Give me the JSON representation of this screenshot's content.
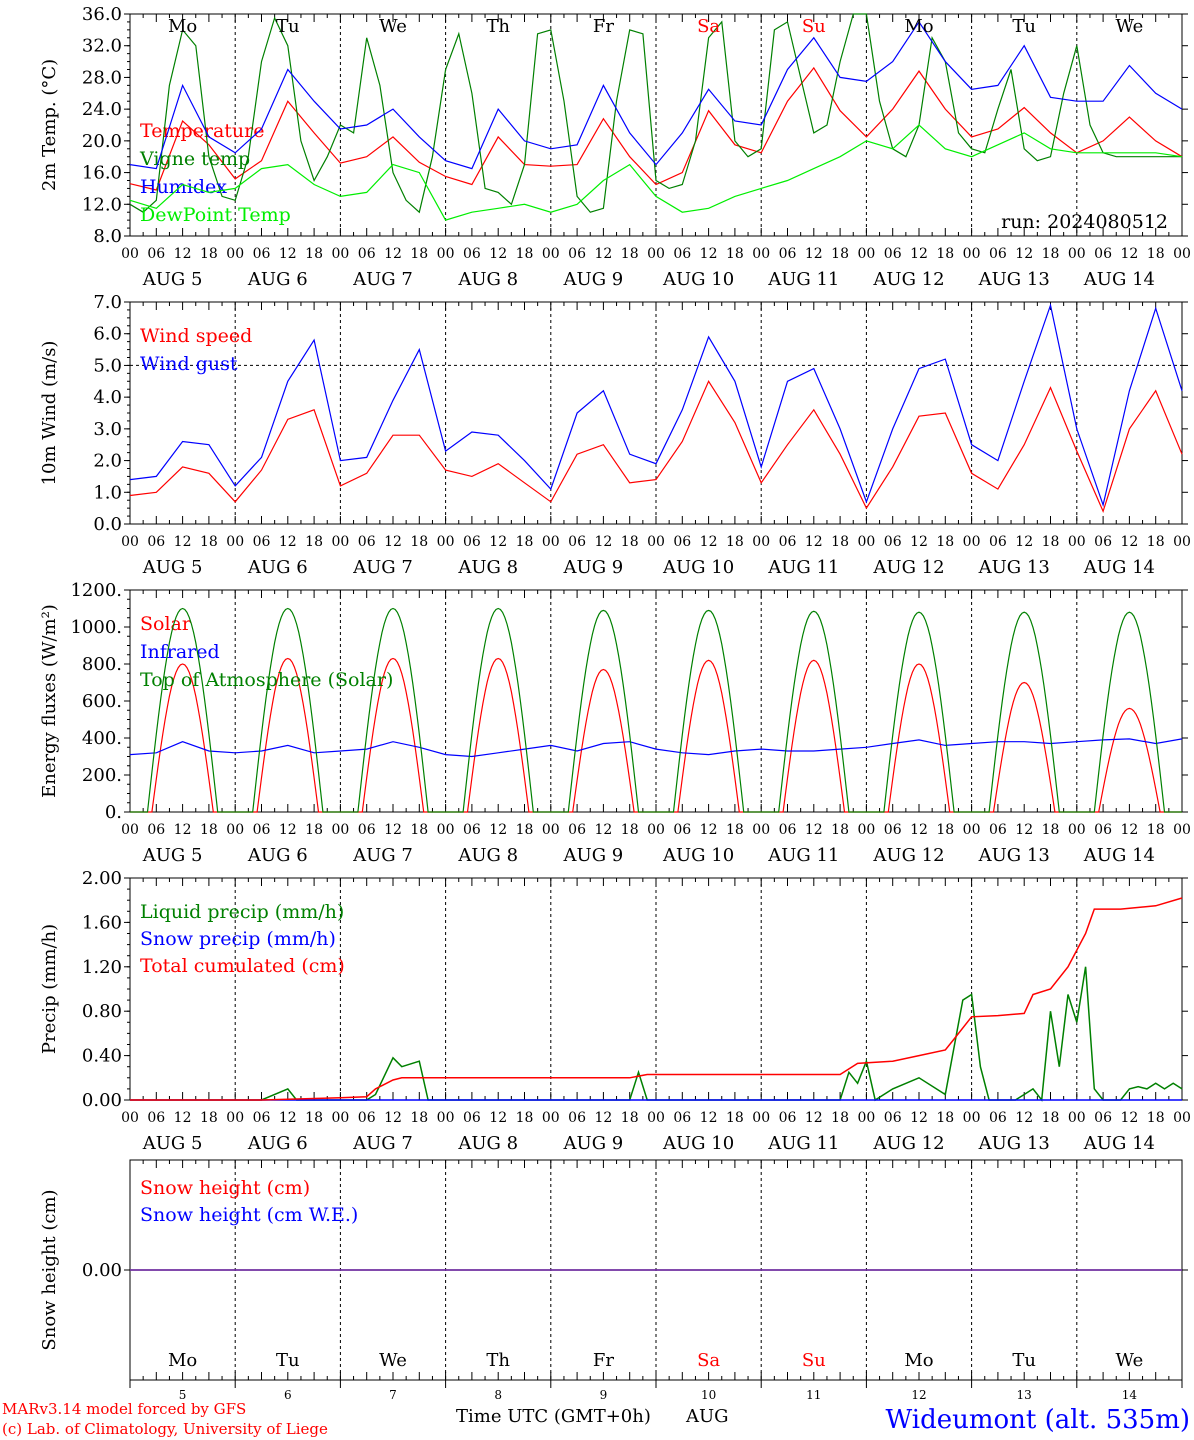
{
  "chart_data": [
    {
      "type": "line",
      "ylabel": "2m Temp. (°C)",
      "ylim": [
        8,
        36
      ],
      "yticks": [
        "8.0",
        "12.0",
        "16.0",
        "20.0",
        "24.0",
        "28.0",
        "32.0",
        "36.0"
      ],
      "run_label": "run: 2024080512",
      "series": [
        {
          "name": "Temperature",
          "color": "#ff0000",
          "x": [
            0,
            6,
            12,
            18,
            24,
            30,
            36,
            42,
            48,
            54,
            60,
            66,
            72,
            78,
            84,
            90,
            96,
            102,
            108,
            114,
            120,
            126,
            132,
            138,
            144,
            150,
            156,
            162,
            168,
            174,
            180,
            186,
            192,
            198,
            204,
            210,
            216,
            222,
            228,
            234,
            240
          ],
          "y": [
            14.6,
            13.8,
            22.5,
            19.5,
            15.2,
            17.5,
            25.0,
            21.0,
            17.2,
            18.0,
            20.5,
            17.3,
            15.5,
            14.5,
            20.5,
            17.0,
            16.8,
            17.0,
            22.8,
            18.0,
            14.5,
            16.0,
            23.8,
            19.5,
            18.5,
            25.0,
            29.2,
            23.8,
            20.5,
            24.0,
            28.8,
            24.0,
            20.5,
            21.5,
            24.2,
            21.0,
            18.5,
            20.0,
            23.0,
            20.0,
            18.0
          ]
        },
        {
          "name": "Vigne temp",
          "color": "#008000",
          "x": [
            0,
            3,
            6,
            9,
            12,
            15,
            18,
            21,
            24,
            27,
            30,
            33,
            36,
            39,
            42,
            45,
            48,
            51,
            54,
            57,
            60,
            63,
            66,
            69,
            72,
            75,
            78,
            81,
            84,
            87,
            90,
            93,
            96,
            99,
            102,
            105,
            108,
            111,
            114,
            117,
            120,
            123,
            126,
            129,
            132,
            135,
            138,
            141,
            144,
            147,
            150,
            153,
            156,
            159,
            162,
            165,
            168,
            171,
            174,
            177,
            180,
            183,
            186,
            189,
            192,
            195,
            198,
            201,
            204,
            207,
            210,
            213,
            216,
            219,
            222,
            225,
            228,
            231,
            234,
            237,
            240
          ],
          "y": [
            12.0,
            11.0,
            12.5,
            27.0,
            34.0,
            32.0,
            18.0,
            13.0,
            12.5,
            18.0,
            30.0,
            35.5,
            32.0,
            20.0,
            15.0,
            18.0,
            22.0,
            21.0,
            33.0,
            27.0,
            16.0,
            12.5,
            11.0,
            18.0,
            29.0,
            33.5,
            26.0,
            14.0,
            13.5,
            12.0,
            17.0,
            33.5,
            34.0,
            25.0,
            13.0,
            11.0,
            11.5,
            25.0,
            34.0,
            33.5,
            15.0,
            14.0,
            14.5,
            20.0,
            33.0,
            35.0,
            20.0,
            18.0,
            19.0,
            34.0,
            35.0,
            28.0,
            21.0,
            22.0,
            30.0,
            36.0,
            36.0,
            25.0,
            19.0,
            18.0,
            22.0,
            33.0,
            30.0,
            21.0,
            19.0,
            18.5,
            24.0,
            29.0,
            19.0,
            17.5,
            18.0,
            26.0,
            32.0,
            22.0,
            18.5,
            18.0,
            18.0,
            18.0,
            18.0,
            18.0,
            18.0
          ]
        },
        {
          "name": "Humidex",
          "color": "#0000ff",
          "x": [
            0,
            6,
            12,
            18,
            24,
            30,
            36,
            42,
            48,
            54,
            60,
            66,
            72,
            78,
            84,
            90,
            96,
            102,
            108,
            114,
            120,
            126,
            132,
            138,
            144,
            150,
            156,
            162,
            168,
            174,
            180,
            186,
            192,
            198,
            204,
            210,
            216,
            222,
            228,
            234,
            240
          ],
          "y": [
            17.0,
            16.5,
            27.0,
            20.5,
            18.5,
            21.5,
            29.0,
            25.0,
            21.5,
            22.0,
            24.0,
            20.5,
            17.5,
            16.5,
            24.0,
            20.0,
            19.0,
            19.5,
            27.0,
            21.0,
            17.0,
            21.0,
            26.5,
            22.5,
            22.0,
            29.0,
            33.0,
            28.0,
            27.5,
            30.0,
            35.0,
            30.0,
            26.5,
            27.0,
            32.0,
            25.5,
            25.0,
            25.0,
            29.5,
            26.0,
            24.0
          ]
        },
        {
          "name": "DewPoint Temp",
          "color": "#00ee00",
          "x": [
            0,
            6,
            12,
            18,
            24,
            30,
            36,
            42,
            48,
            54,
            60,
            66,
            72,
            78,
            84,
            90,
            96,
            102,
            108,
            114,
            120,
            126,
            132,
            138,
            144,
            150,
            156,
            162,
            168,
            174,
            180,
            186,
            192,
            198,
            204,
            210,
            216,
            222,
            228,
            234,
            240
          ],
          "y": [
            12.5,
            11.5,
            14.5,
            13.5,
            14.0,
            16.5,
            17.0,
            14.5,
            13.0,
            13.5,
            17.0,
            16.0,
            10.0,
            11.0,
            11.5,
            12.0,
            11.0,
            12.0,
            15.0,
            17.0,
            13.0,
            11.0,
            11.5,
            13.0,
            14.0,
            15.0,
            16.5,
            18.0,
            20.0,
            19.0,
            22.0,
            19.0,
            18.0,
            19.5,
            21.0,
            19.0,
            18.5,
            18.5,
            18.5,
            18.5,
            18.0
          ]
        }
      ]
    },
    {
      "type": "line",
      "ylabel": "10m Wind (m/s)",
      "ylim": [
        0,
        7
      ],
      "yticks": [
        "0.0",
        "1.0",
        "2.0",
        "3.0",
        "4.0",
        "5.0",
        "6.0",
        "7.0"
      ],
      "reference_line": 5.0,
      "series": [
        {
          "name": "Wind speed",
          "color": "#ff0000",
          "x": [
            0,
            6,
            12,
            18,
            24,
            30,
            36,
            42,
            48,
            54,
            60,
            66,
            72,
            78,
            84,
            90,
            96,
            102,
            108,
            114,
            120,
            126,
            132,
            138,
            144,
            150,
            156,
            162,
            168,
            174,
            180,
            186,
            192,
            198,
            204,
            210,
            216,
            222,
            228,
            234,
            240
          ],
          "y": [
            0.9,
            1.0,
            1.8,
            1.6,
            0.7,
            1.7,
            3.3,
            3.6,
            1.2,
            1.6,
            2.8,
            2.8,
            1.7,
            1.5,
            1.9,
            1.3,
            0.7,
            2.2,
            2.5,
            1.3,
            1.4,
            2.6,
            4.5,
            3.2,
            1.3,
            2.5,
            3.6,
            2.2,
            0.5,
            1.8,
            3.4,
            3.5,
            1.6,
            1.1,
            2.5,
            4.3,
            2.3,
            0.4,
            3.0,
            4.2,
            2.2
          ]
        },
        {
          "name": "Wind gust",
          "color": "#0000ff",
          "x": [
            0,
            6,
            12,
            18,
            24,
            30,
            36,
            42,
            48,
            54,
            60,
            66,
            72,
            78,
            84,
            90,
            96,
            102,
            108,
            114,
            120,
            126,
            132,
            138,
            144,
            150,
            156,
            162,
            168,
            174,
            180,
            186,
            192,
            198,
            204,
            210,
            216,
            222,
            228,
            234,
            240
          ],
          "y": [
            1.4,
            1.5,
            2.6,
            2.5,
            1.2,
            2.1,
            4.5,
            5.8,
            2.0,
            2.1,
            3.9,
            5.5,
            2.3,
            2.9,
            2.8,
            2.0,
            1.1,
            3.5,
            4.2,
            2.2,
            1.9,
            3.6,
            5.9,
            4.5,
            1.8,
            4.5,
            4.9,
            3.0,
            0.7,
            3.0,
            4.9,
            5.2,
            2.5,
            2.0,
            4.5,
            6.9,
            3.0,
            0.6,
            4.2,
            6.8,
            4.2
          ]
        }
      ]
    },
    {
      "type": "line",
      "ylabel": "Energy fluxes (W/m²)",
      "ylim": [
        0,
        1200
      ],
      "yticks": [
        "0.",
        "200.",
        "400.",
        "600.",
        "800.",
        "1000.",
        "1200."
      ],
      "series": [
        {
          "name": "Solar",
          "color": "#ff0000",
          "peaks": [
            800,
            830,
            830,
            830,
            770,
            820,
            820,
            800,
            700,
            560
          ]
        },
        {
          "name": "Infrared",
          "color": "#0000ff",
          "x": [
            0,
            6,
            12,
            18,
            24,
            30,
            36,
            42,
            48,
            54,
            60,
            66,
            72,
            78,
            84,
            90,
            96,
            102,
            108,
            114,
            120,
            126,
            132,
            138,
            144,
            150,
            156,
            162,
            168,
            174,
            180,
            186,
            192,
            198,
            204,
            210,
            216,
            222,
            228,
            234,
            240
          ],
          "y": [
            310,
            320,
            380,
            330,
            320,
            330,
            360,
            320,
            330,
            340,
            380,
            350,
            310,
            300,
            320,
            340,
            360,
            330,
            370,
            380,
            340,
            320,
            310,
            330,
            340,
            330,
            330,
            340,
            350,
            370,
            390,
            360,
            370,
            380,
            380,
            370,
            380,
            390,
            395,
            370,
            395
          ]
        },
        {
          "name": "Top of Atmosphere (Solar)",
          "color": "#008000",
          "peaks": [
            1100,
            1100,
            1100,
            1100,
            1090,
            1090,
            1085,
            1080,
            1080,
            1080
          ]
        }
      ]
    },
    {
      "type": "line",
      "ylabel": "Precip (mm/h)",
      "ylim": [
        0,
        2
      ],
      "yticks": [
        "0.00",
        "0.40",
        "0.80",
        "1.20",
        "1.60",
        "2.00"
      ],
      "series": [
        {
          "name": "Liquid precip (mm/h)",
          "color": "#008000",
          "x": [
            0,
            30,
            36,
            38,
            54,
            56,
            60,
            62,
            66,
            68,
            114,
            116,
            118,
            120,
            162,
            164,
            166,
            168,
            170,
            174,
            180,
            186,
            190,
            192,
            194,
            196,
            198,
            202,
            204,
            206,
            208,
            210,
            212,
            214,
            216,
            218,
            220,
            222,
            224,
            226,
            228,
            230,
            232,
            234,
            236,
            238,
            240
          ],
          "y": [
            0,
            0,
            0.1,
            0,
            0,
            0.05,
            0.38,
            0.3,
            0.35,
            0,
            0,
            0.25,
            0,
            0,
            0,
            0.25,
            0.15,
            0.35,
            0,
            0.1,
            0.2,
            0.05,
            0.9,
            0.95,
            0.3,
            0,
            0,
            0,
            0.05,
            0.1,
            0,
            0.8,
            0.3,
            0.95,
            0.7,
            1.2,
            0.1,
            0,
            0,
            0,
            0.1,
            0.12,
            0.1,
            0.15,
            0.1,
            0.15,
            0.1
          ]
        },
        {
          "name": "Snow precip (mm/h)",
          "color": "#0000ff",
          "x": [
            0,
            240
          ],
          "y": [
            0,
            0
          ]
        },
        {
          "name": "Total cumulated (cm)",
          "color": "#ff0000",
          "x": [
            0,
            30,
            48,
            54,
            56,
            60,
            62,
            66,
            114,
            118,
            120,
            162,
            166,
            174,
            180,
            186,
            188,
            192,
            198,
            204,
            206,
            210,
            214,
            218,
            220,
            226,
            234,
            240
          ],
          "y": [
            0,
            0,
            0.02,
            0.03,
            0.1,
            0.18,
            0.2,
            0.2,
            0.2,
            0.23,
            0.23,
            0.23,
            0.33,
            0.35,
            0.4,
            0.45,
            0.55,
            0.75,
            0.76,
            0.78,
            0.95,
            1.0,
            1.2,
            1.5,
            1.72,
            1.72,
            1.75,
            1.82
          ]
        }
      ]
    },
    {
      "type": "line",
      "ylabel": "Snow height (cm)",
      "yticks": [
        "0.00"
      ],
      "series": [
        {
          "name": "Snow height (cm)",
          "color": "#ff0000",
          "x": [
            0,
            240
          ],
          "y": [
            0,
            0
          ]
        },
        {
          "name": "Snow height (cm W.E.)",
          "color": "#0000ff",
          "x": [
            0,
            240
          ],
          "y": [
            0,
            0
          ]
        }
      ]
    }
  ],
  "axis": {
    "hour_ticks": [
      "00",
      "06",
      "12",
      "18"
    ],
    "end_tick": "00",
    "dates": [
      "AUG  5",
      "AUG  6",
      "AUG  7",
      "AUG  8",
      "AUG  9",
      "AUG 10",
      "AUG 11",
      "AUG 12",
      "AUG 13",
      "AUG 14"
    ],
    "days": [
      "Mo",
      "Tu",
      "We",
      "Th",
      "Fr",
      "Sa",
      "Su",
      "Mo",
      "Tu",
      "We"
    ],
    "weekend_color": "#ff0000",
    "day_numbers": [
      "5",
      "6",
      "7",
      "8",
      "9",
      "10",
      "11",
      "12",
      "13",
      "14"
    ],
    "month": "AUG",
    "xlabel": "Time UTC (GMT+0h)"
  },
  "footer": {
    "credit_1": "MARv3.14 model forced by GFS",
    "credit_2": "(c) Lab. of Climatology, University of Liege",
    "station": "Wideumont (alt. 535m)"
  }
}
